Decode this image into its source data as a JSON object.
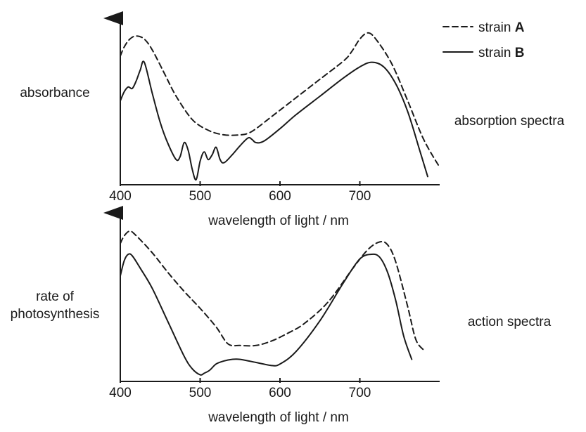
{
  "legend": {
    "strain_a_prefix": "strain ",
    "strain_a_letter": "A",
    "strain_b_prefix": "strain ",
    "strain_b_letter": "B"
  },
  "chart_data": [
    {
      "type": "line",
      "side_label": "absorption spectra",
      "ylabel": "absorbance",
      "xlabel": "wavelength of light / nm",
      "xlim": [
        400,
        800
      ],
      "x_ticks": [
        400,
        500,
        600,
        700
      ],
      "series": [
        {
          "name": "strain A",
          "style": "dashed",
          "x": [
            400,
            405,
            412,
            420,
            430,
            440,
            455,
            470,
            490,
            510,
            530,
            550,
            560,
            570,
            590,
            620,
            650,
            680,
            690,
            700,
            710,
            720,
            740,
            760,
            780,
            800
          ],
          "y": [
            0.81,
            0.87,
            0.92,
            0.94,
            0.92,
            0.85,
            0.7,
            0.55,
            0.4,
            0.33,
            0.3,
            0.3,
            0.31,
            0.34,
            0.42,
            0.54,
            0.66,
            0.78,
            0.84,
            0.92,
            0.96,
            0.92,
            0.76,
            0.52,
            0.27,
            0.09
          ]
        },
        {
          "name": "strain B",
          "style": "solid",
          "x": [
            400,
            405,
            410,
            415,
            420,
            425,
            430,
            440,
            450,
            460,
            470,
            475,
            480,
            485,
            490,
            495,
            500,
            505,
            510,
            515,
            520,
            525,
            530,
            540,
            550,
            560,
            565,
            570,
            580,
            600,
            620,
            650,
            680,
            700,
            715,
            730,
            745,
            760,
            775,
            785
          ],
          "y": [
            0.52,
            0.58,
            0.61,
            0.6,
            0.65,
            0.72,
            0.77,
            0.57,
            0.38,
            0.24,
            0.14,
            0.16,
            0.25,
            0.2,
            0.08,
            0.01,
            0.13,
            0.19,
            0.14,
            0.17,
            0.22,
            0.14,
            0.12,
            0.17,
            0.23,
            0.28,
            0.27,
            0.25,
            0.26,
            0.34,
            0.43,
            0.55,
            0.67,
            0.74,
            0.77,
            0.74,
            0.63,
            0.45,
            0.2,
            0.03
          ]
        }
      ]
    },
    {
      "type": "line",
      "side_label": "action spectra",
      "ylabel": "rate of\nphotosynthesis",
      "ylabel_lines": [
        "rate of",
        "photosynthesis"
      ],
      "xlabel": "wavelength of light / nm",
      "xlim": [
        400,
        800
      ],
      "x_ticks": [
        400,
        500,
        600,
        700
      ],
      "series": [
        {
          "name": "strain A",
          "style": "dashed",
          "x": [
            400,
            405,
            412,
            420,
            440,
            460,
            480,
            500,
            520,
            535,
            550,
            570,
            590,
            610,
            630,
            660,
            690,
            710,
            725,
            735,
            745,
            760,
            770,
            780
          ],
          "y": [
            0.87,
            0.92,
            0.95,
            0.92,
            0.81,
            0.68,
            0.56,
            0.45,
            0.33,
            0.22,
            0.21,
            0.21,
            0.24,
            0.29,
            0.35,
            0.49,
            0.7,
            0.83,
            0.88,
            0.86,
            0.75,
            0.46,
            0.25,
            0.18
          ]
        },
        {
          "name": "strain B",
          "style": "solid",
          "x": [
            400,
            405,
            410,
            415,
            425,
            440,
            460,
            480,
            490,
            500,
            505,
            512,
            520,
            530,
            540,
            550,
            570,
            590,
            600,
            620,
            650,
            680,
            700,
            715,
            725,
            735,
            745,
            755,
            765
          ],
          "y": [
            0.66,
            0.76,
            0.8,
            0.79,
            0.71,
            0.58,
            0.36,
            0.14,
            0.06,
            0.02,
            0.03,
            0.05,
            0.09,
            0.11,
            0.12,
            0.12,
            0.1,
            0.08,
            0.09,
            0.17,
            0.37,
            0.62,
            0.77,
            0.8,
            0.78,
            0.68,
            0.5,
            0.27,
            0.12
          ]
        }
      ]
    }
  ]
}
